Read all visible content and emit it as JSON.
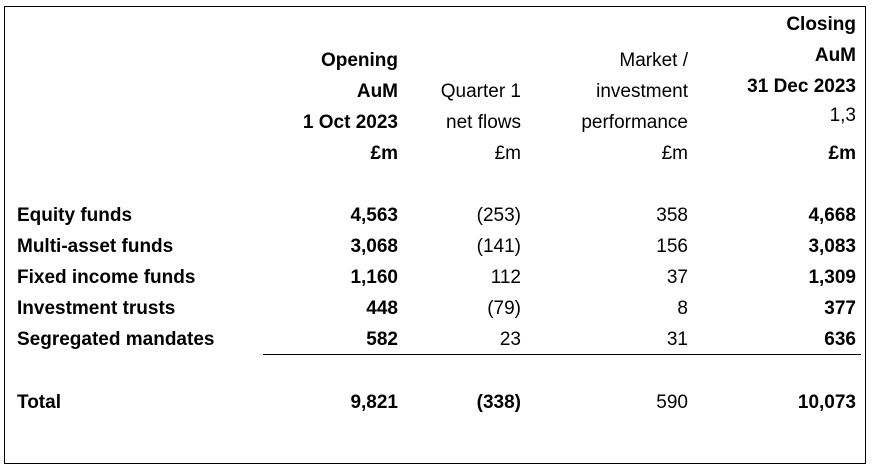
{
  "columns": [
    {
      "header_lines": [
        "Opening",
        "AuM",
        "1 Oct 2023",
        "£m"
      ],
      "bold": true
    },
    {
      "header_lines": [
        "Quarter 1",
        "net flows",
        "£m"
      ],
      "bold": false
    },
    {
      "header_lines": [
        "Market /",
        "investment",
        "performance",
        "£m"
      ],
      "bold": false
    },
    {
      "header_lines": [
        "Closing",
        "AuM",
        "31 Dec 2023",
        "1,3",
        "£m"
      ],
      "bold": true
    }
  ],
  "rows": [
    {
      "label": "Equity funds",
      "values": [
        "4,563",
        "(253)",
        "358",
        "4,668"
      ]
    },
    {
      "label": "Multi-asset funds",
      "values": [
        "3,068",
        "(141)",
        "156",
        "3,083"
      ]
    },
    {
      "label": "Fixed income funds",
      "values": [
        "1,160",
        "112",
        "37",
        "1,309"
      ]
    },
    {
      "label": "Investment trusts",
      "values": [
        "448",
        "(79)",
        "8",
        "377"
      ]
    },
    {
      "label": "Segregated mandates",
      "values": [
        "582",
        "23",
        "31",
        "636"
      ]
    }
  ],
  "total": {
    "label": "Total",
    "values": [
      "9,821",
      "(338)",
      "590",
      "10,073"
    ]
  }
}
